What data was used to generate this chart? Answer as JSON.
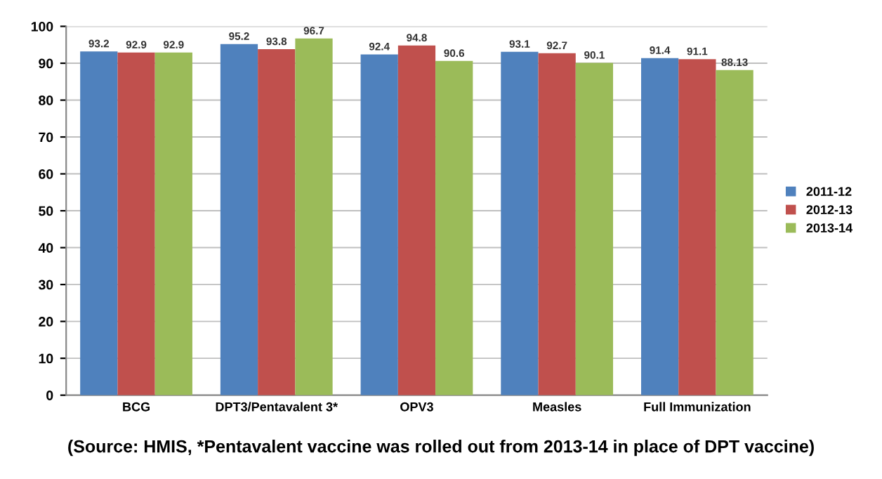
{
  "chart_data": {
    "type": "bar",
    "categories": [
      "BCG",
      "DPT3/Pentavalent 3*",
      "OPV3",
      "Measles",
      "Full Immunization"
    ],
    "series": [
      {
        "name": "2011-12",
        "color": "#4f81bd",
        "values": [
          93.2,
          95.2,
          92.4,
          93.1,
          91.4
        ]
      },
      {
        "name": "2012-13",
        "color": "#c0504d",
        "values": [
          92.9,
          93.8,
          94.8,
          92.7,
          91.1
        ]
      },
      {
        "name": "2013-14",
        "color": "#9bbb59",
        "values": [
          92.9,
          96.7,
          90.6,
          90.1,
          88.13
        ]
      }
    ],
    "ylim": [
      0,
      100
    ],
    "yticks": [
      0,
      10,
      20,
      30,
      40,
      50,
      60,
      70,
      80,
      90,
      100
    ],
    "grid": "y",
    "legend": "right",
    "data_labels": true,
    "annotations": [
      "(Source: HMIS, *Pentavalent vaccine was rolled out from 2013-14 in place of DPT vaccine)"
    ]
  }
}
